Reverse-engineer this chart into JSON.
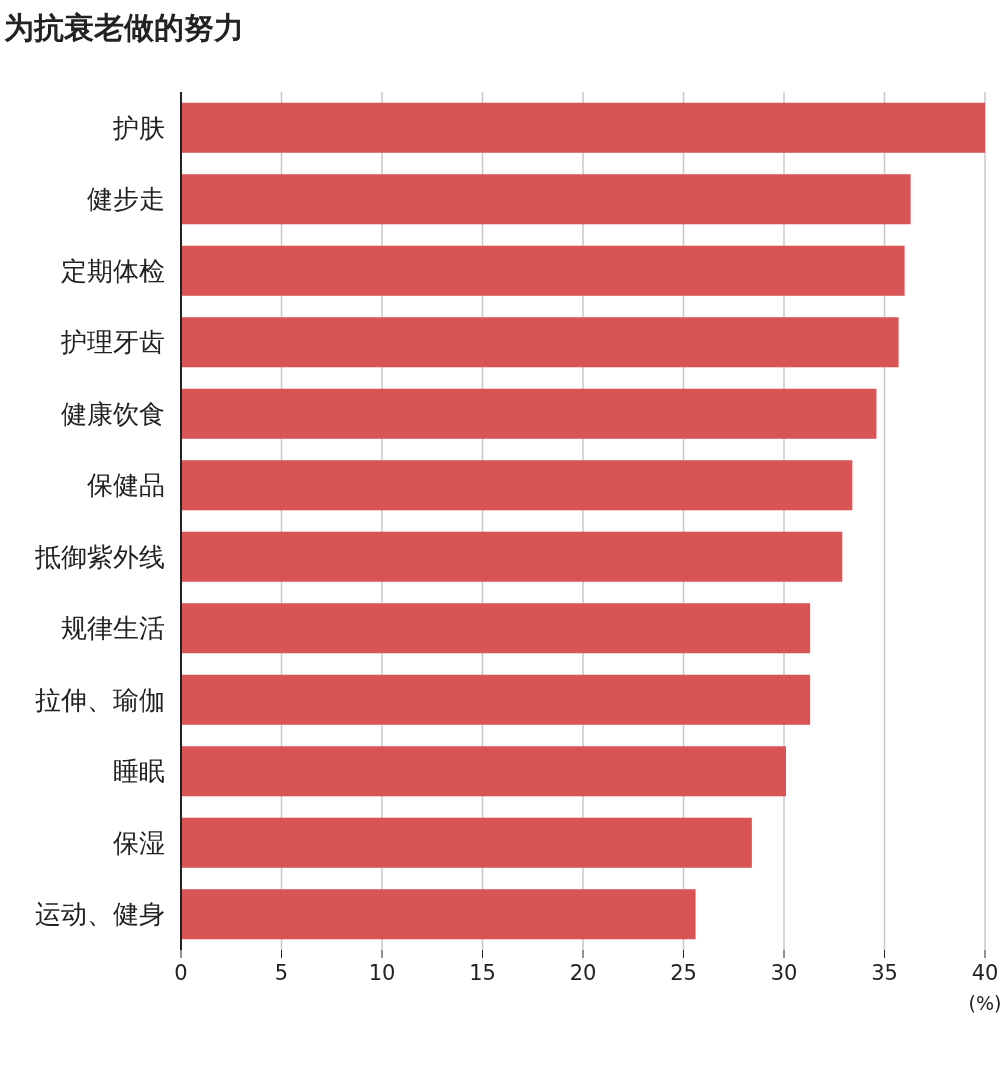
{
  "chart_data": {
    "type": "bar",
    "orientation": "horizontal",
    "title": "为抗衰老做的努力",
    "xlabel": "(%)",
    "categories": [
      "护肤",
      "健步走",
      "定期体检",
      "护理牙齿",
      "健康饮食",
      "保健品",
      "抵御紫外线",
      "规律生活",
      "拉伸、瑜伽",
      "睡眠",
      "保湿",
      "运动、健身"
    ],
    "values": [
      40.0,
      36.3,
      36.0,
      35.7,
      34.6,
      33.4,
      32.9,
      31.3,
      31.3,
      30.1,
      28.4,
      25.6
    ],
    "color": "#d95555",
    "xlim": [
      0,
      40
    ],
    "xticks": [
      0,
      5,
      10,
      15,
      20,
      25,
      30,
      35,
      40
    ],
    "grid": "x"
  }
}
